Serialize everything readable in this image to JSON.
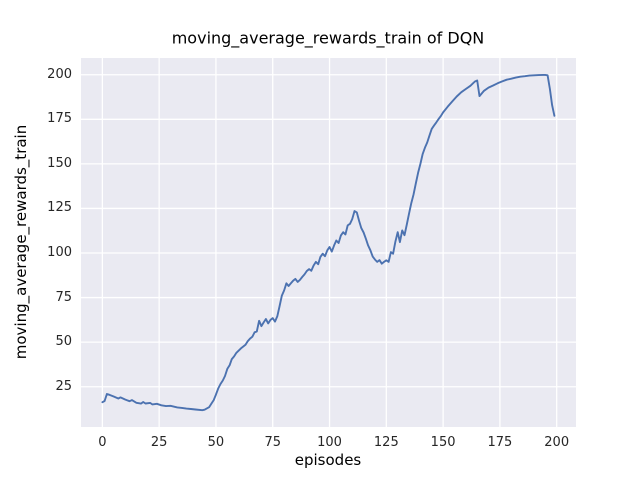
{
  "chart_data": {
    "type": "line",
    "title": "moving_average_rewards_train of DQN",
    "xlabel": "episodes",
    "ylabel": "moving_average_rewards_train",
    "x_ticks": [
      0,
      25,
      50,
      75,
      100,
      125,
      150,
      175,
      200
    ],
    "y_ticks": [
      25,
      50,
      75,
      100,
      125,
      150,
      175,
      200
    ],
    "xlim": [
      -9.4,
      208.5
    ],
    "ylim": [
      2.4,
      209.4
    ],
    "grid": true,
    "legend": false,
    "theme": {
      "figure_bg": "#ffffff",
      "plot_bg": "#eaeaf2",
      "grid_color": "#ffffff",
      "tick_color": "#262626",
      "line_color": "#4c72b0"
    },
    "series": [
      {
        "points": [
          [
            0,
            16.3
          ],
          [
            1,
            17.0
          ],
          [
            2,
            20.9
          ],
          [
            3,
            20.5
          ],
          [
            5,
            19.5
          ],
          [
            7,
            18.4
          ],
          [
            8,
            19.0
          ],
          [
            10,
            17.8
          ],
          [
            12,
            16.9
          ],
          [
            13,
            17.5
          ],
          [
            15,
            16.0
          ],
          [
            17,
            15.5
          ],
          [
            18,
            16.4
          ],
          [
            19,
            15.6
          ],
          [
            21,
            15.9
          ],
          [
            22,
            15.1
          ],
          [
            24,
            15.4
          ],
          [
            26,
            14.6
          ],
          [
            28,
            14.1
          ],
          [
            30,
            14.3
          ],
          [
            33,
            13.4
          ],
          [
            35,
            13.1
          ],
          [
            37,
            12.7
          ],
          [
            39,
            12.5
          ],
          [
            41,
            12.2
          ],
          [
            44,
            11.8
          ],
          [
            45,
            12.1
          ],
          [
            47,
            13.5
          ],
          [
            48,
            15.5
          ],
          [
            49,
            17.5
          ],
          [
            50,
            20.5
          ],
          [
            51,
            24.0
          ],
          [
            52,
            26.5
          ],
          [
            53,
            28.5
          ],
          [
            54,
            31.0
          ],
          [
            55,
            35.0
          ],
          [
            56,
            37.0
          ],
          [
            57,
            40.5
          ],
          [
            58,
            42.0
          ],
          [
            59,
            44.0
          ],
          [
            61,
            46.5
          ],
          [
            63,
            48.5
          ],
          [
            64,
            50.5
          ],
          [
            65,
            52.0
          ],
          [
            66,
            53.0
          ],
          [
            67,
            55.5
          ],
          [
            68,
            56.0
          ],
          [
            69,
            62.0
          ],
          [
            70,
            59.0
          ],
          [
            71,
            61.0
          ],
          [
            72,
            63.0
          ],
          [
            73,
            60.5
          ],
          [
            74,
            62.5
          ],
          [
            75,
            63.5
          ],
          [
            76,
            61.5
          ],
          [
            77,
            64.5
          ],
          [
            78,
            70.0
          ],
          [
            79,
            76.0
          ],
          [
            80,
            79.0
          ],
          [
            81,
            83.0
          ],
          [
            82,
            81.5
          ],
          [
            83,
            83.0
          ],
          [
            84,
            84.5
          ],
          [
            85,
            85.5
          ],
          [
            86,
            83.8
          ],
          [
            87,
            85.0
          ],
          [
            88,
            86.6
          ],
          [
            89,
            88.0
          ],
          [
            90,
            89.9
          ],
          [
            91,
            91.0
          ],
          [
            92,
            90.0
          ],
          [
            93,
            93.0
          ],
          [
            94,
            95.0
          ],
          [
            95,
            93.7
          ],
          [
            96,
            97.8
          ],
          [
            97,
            99.6
          ],
          [
            98,
            98.2
          ],
          [
            99,
            101.5
          ],
          [
            100,
            103.4
          ],
          [
            101,
            100.8
          ],
          [
            102,
            104.3
          ],
          [
            103,
            107.0
          ],
          [
            104,
            105.6
          ],
          [
            105,
            109.9
          ],
          [
            106,
            111.7
          ],
          [
            107,
            110.4
          ],
          [
            108,
            115.5
          ],
          [
            109,
            116.4
          ],
          [
            110,
            119.0
          ],
          [
            111,
            123.5
          ],
          [
            112,
            122.8
          ],
          [
            113,
            118.0
          ],
          [
            114,
            114.0
          ],
          [
            115,
            111.5
          ],
          [
            116,
            108.0
          ],
          [
            117,
            104.3
          ],
          [
            118,
            101.5
          ],
          [
            119,
            98.0
          ],
          [
            120,
            96.3
          ],
          [
            121,
            95.0
          ],
          [
            122,
            96.0
          ],
          [
            123,
            94.0
          ],
          [
            124,
            95.0
          ],
          [
            125,
            95.9
          ],
          [
            126,
            95.0
          ],
          [
            127,
            100.5
          ],
          [
            128,
            99.6
          ],
          [
            129,
            106.4
          ],
          [
            130,
            111.7
          ],
          [
            131,
            106.1
          ],
          [
            132,
            112.7
          ],
          [
            133,
            110.0
          ],
          [
            134,
            116.0
          ],
          [
            135,
            122.0
          ],
          [
            136,
            128.0
          ],
          [
            137,
            133.0
          ],
          [
            138,
            139.0
          ],
          [
            139,
            145.0
          ],
          [
            140,
            150.0
          ],
          [
            141,
            155.6
          ],
          [
            142,
            159.0
          ],
          [
            143,
            162.0
          ],
          [
            144,
            166.0
          ],
          [
            145,
            169.6
          ],
          [
            146,
            171.5
          ],
          [
            147,
            173.3
          ],
          [
            148,
            175.2
          ],
          [
            149,
            176.8
          ],
          [
            150,
            178.9
          ],
          [
            152,
            182.0
          ],
          [
            154,
            185.0
          ],
          [
            156,
            187.8
          ],
          [
            158,
            190.2
          ],
          [
            160,
            192.0
          ],
          [
            162,
            193.8
          ],
          [
            163,
            195.0
          ],
          [
            164,
            196.2
          ],
          [
            165,
            196.8
          ],
          [
            166,
            188.0
          ],
          [
            167,
            189.5
          ],
          [
            168,
            191.0
          ],
          [
            170,
            192.8
          ],
          [
            172,
            194.0
          ],
          [
            174,
            195.2
          ],
          [
            176,
            196.3
          ],
          [
            178,
            197.2
          ],
          [
            180,
            197.8
          ],
          [
            182,
            198.4
          ],
          [
            184,
            198.9
          ],
          [
            186,
            199.2
          ],
          [
            188,
            199.5
          ],
          [
            190,
            199.7
          ],
          [
            192,
            199.8
          ],
          [
            194,
            199.9
          ],
          [
            195,
            199.9
          ],
          [
            196,
            199.7
          ],
          [
            197,
            192.0
          ],
          [
            198,
            183.0
          ],
          [
            199,
            177.0
          ]
        ]
      }
    ]
  }
}
